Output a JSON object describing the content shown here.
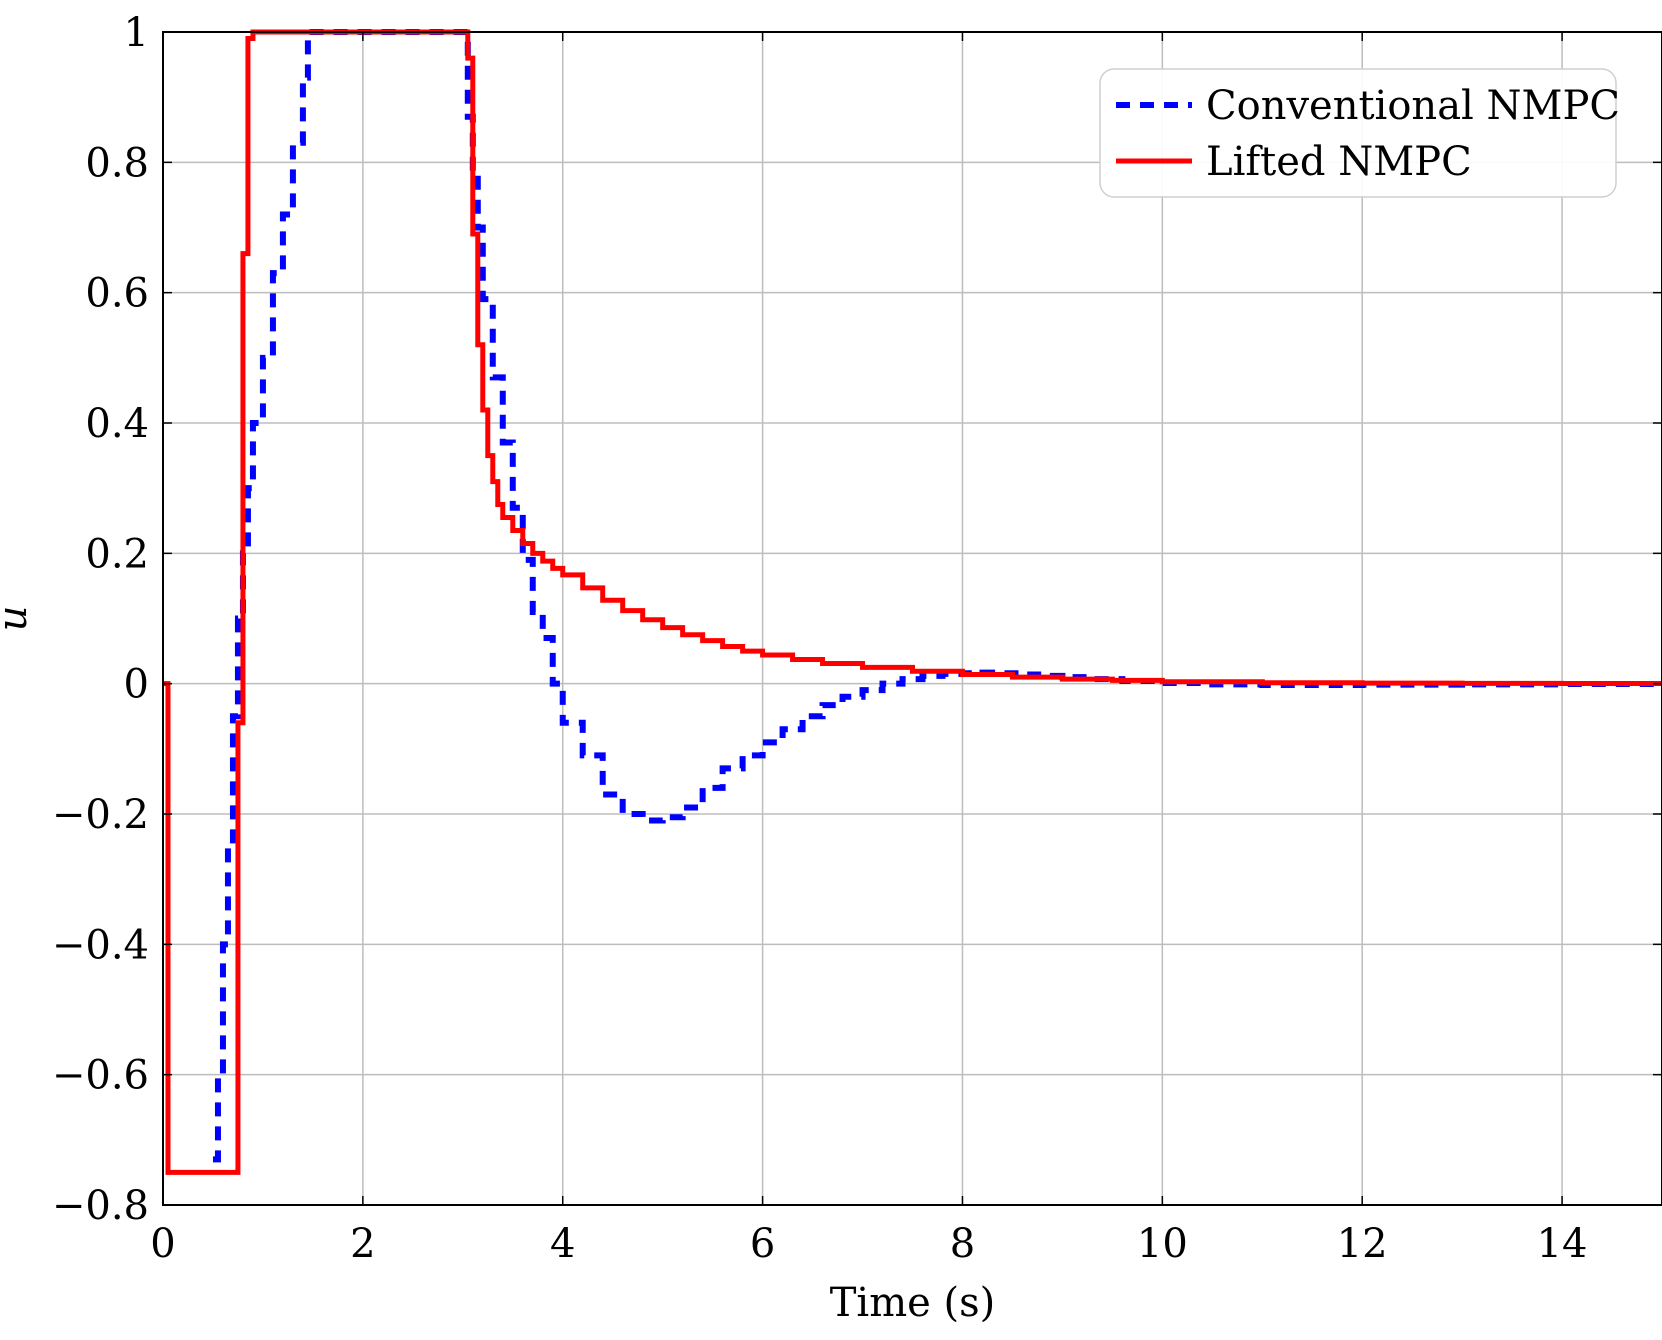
{
  "chart_data": {
    "type": "line",
    "title": "",
    "xlabel": "Time (s)",
    "ylabel": "u",
    "xlim": [
      0,
      15
    ],
    "ylim": [
      -0.8,
      1
    ],
    "xticks": [
      0,
      2,
      4,
      6,
      8,
      10,
      12,
      14
    ],
    "xtick_labels": [
      "0",
      "2",
      "4",
      "6",
      "8",
      "10",
      "12",
      "14"
    ],
    "yticks": [
      -0.8,
      -0.6,
      -0.4,
      -0.2,
      0,
      0.2,
      0.4,
      0.6,
      0.8,
      1
    ],
    "ytick_labels": [
      "−0.8",
      "−0.6",
      "−0.4",
      "−0.2",
      "0",
      "0.2",
      "0.4",
      "0.6",
      "0.8",
      "1"
    ],
    "grid": true,
    "legend_position": "top-right",
    "step": true,
    "series": [
      {
        "name": "Conventional NMPC",
        "color": "#0000ff",
        "style": "dashed",
        "points": [
          [
            0.5,
            -0.73
          ],
          [
            0.55,
            -0.6
          ],
          [
            0.6,
            -0.4
          ],
          [
            0.65,
            -0.25
          ],
          [
            0.7,
            -0.05
          ],
          [
            0.75,
            0.1
          ],
          [
            0.8,
            0.2
          ],
          [
            0.85,
            0.3
          ],
          [
            0.9,
            0.4
          ],
          [
            1.0,
            0.5
          ],
          [
            1.1,
            0.63
          ],
          [
            1.2,
            0.72
          ],
          [
            1.3,
            0.83
          ],
          [
            1.4,
            0.93
          ],
          [
            1.45,
            1.0
          ],
          [
            3.0,
            1.0
          ],
          [
            3.05,
            0.87
          ],
          [
            3.1,
            0.78
          ],
          [
            3.15,
            0.7
          ],
          [
            3.2,
            0.59
          ],
          [
            3.3,
            0.47
          ],
          [
            3.4,
            0.37
          ],
          [
            3.5,
            0.27
          ],
          [
            3.6,
            0.19
          ],
          [
            3.7,
            0.11
          ],
          [
            3.8,
            0.07
          ],
          [
            3.9,
            0.0
          ],
          [
            4.0,
            -0.06
          ],
          [
            4.2,
            -0.11
          ],
          [
            4.4,
            -0.17
          ],
          [
            4.6,
            -0.2
          ],
          [
            4.8,
            -0.21
          ],
          [
            5.0,
            -0.205
          ],
          [
            5.2,
            -0.19
          ],
          [
            5.4,
            -0.16
          ],
          [
            5.6,
            -0.13
          ],
          [
            5.8,
            -0.11
          ],
          [
            6.0,
            -0.09
          ],
          [
            6.2,
            -0.07
          ],
          [
            6.4,
            -0.05
          ],
          [
            6.6,
            -0.033
          ],
          [
            6.8,
            -0.02
          ],
          [
            7.0,
            -0.01
          ],
          [
            7.2,
            0.0
          ],
          [
            7.4,
            0.007
          ],
          [
            7.6,
            0.012
          ],
          [
            7.8,
            0.015
          ],
          [
            8.0,
            0.016
          ],
          [
            8.2,
            0.017
          ],
          [
            8.4,
            0.016
          ],
          [
            8.6,
            0.014
          ],
          [
            8.8,
            0.012
          ],
          [
            9.0,
            0.01
          ],
          [
            9.3,
            0.007
          ],
          [
            9.6,
            0.004
          ],
          [
            10.0,
            0.001
          ],
          [
            10.5,
            -0.001
          ],
          [
            11.0,
            -0.002
          ],
          [
            11.5,
            -0.002
          ],
          [
            12.0,
            -0.0015
          ],
          [
            13.0,
            -0.001
          ],
          [
            14.0,
            -0.0005
          ],
          [
            15.0,
            0.0
          ]
        ]
      },
      {
        "name": "Lifted NMPC",
        "color": "#ff0000",
        "style": "solid",
        "points": [
          [
            0.0,
            0.0
          ],
          [
            0.05,
            -0.75
          ],
          [
            0.75,
            -0.06
          ],
          [
            0.8,
            0.66
          ],
          [
            0.85,
            0.99
          ],
          [
            0.9,
            1.0
          ],
          [
            3.0,
            1.0
          ],
          [
            3.05,
            0.96
          ],
          [
            3.1,
            0.69
          ],
          [
            3.15,
            0.52
          ],
          [
            3.2,
            0.42
          ],
          [
            3.25,
            0.35
          ],
          [
            3.3,
            0.31
          ],
          [
            3.35,
            0.275
          ],
          [
            3.4,
            0.255
          ],
          [
            3.5,
            0.235
          ],
          [
            3.6,
            0.215
          ],
          [
            3.7,
            0.2
          ],
          [
            3.8,
            0.188
          ],
          [
            3.9,
            0.177
          ],
          [
            4.0,
            0.167
          ],
          [
            4.2,
            0.147
          ],
          [
            4.4,
            0.128
          ],
          [
            4.6,
            0.112
          ],
          [
            4.8,
            0.098
          ],
          [
            5.0,
            0.086
          ],
          [
            5.2,
            0.075
          ],
          [
            5.4,
            0.066
          ],
          [
            5.6,
            0.057
          ],
          [
            5.8,
            0.05
          ],
          [
            6.0,
            0.044
          ],
          [
            6.3,
            0.037
          ],
          [
            6.6,
            0.031
          ],
          [
            7.0,
            0.025
          ],
          [
            7.5,
            0.019
          ],
          [
            8.0,
            0.014
          ],
          [
            8.5,
            0.01
          ],
          [
            9.0,
            0.007
          ],
          [
            9.5,
            0.005
          ],
          [
            10.0,
            0.003
          ],
          [
            11.0,
            0.0015
          ],
          [
            12.0,
            0.0008
          ],
          [
            13.0,
            0.0004
          ],
          [
            14.0,
            0.0002
          ],
          [
            15.0,
            0.0
          ]
        ]
      }
    ]
  }
}
